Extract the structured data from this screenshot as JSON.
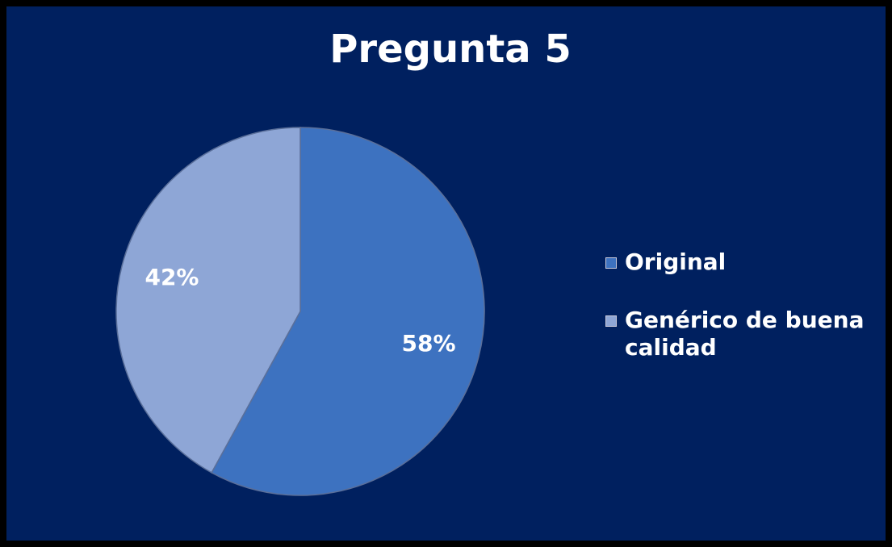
{
  "chart_data": {
    "type": "pie",
    "title": "Pregunta 5",
    "categories": [
      "Original",
      "Genérico de buena calidad"
    ],
    "values": [
      58,
      42
    ],
    "value_labels": [
      "58%",
      "42%"
    ],
    "colors": [
      "#3d72c0",
      "#8ea6d6"
    ],
    "legend": "right"
  }
}
